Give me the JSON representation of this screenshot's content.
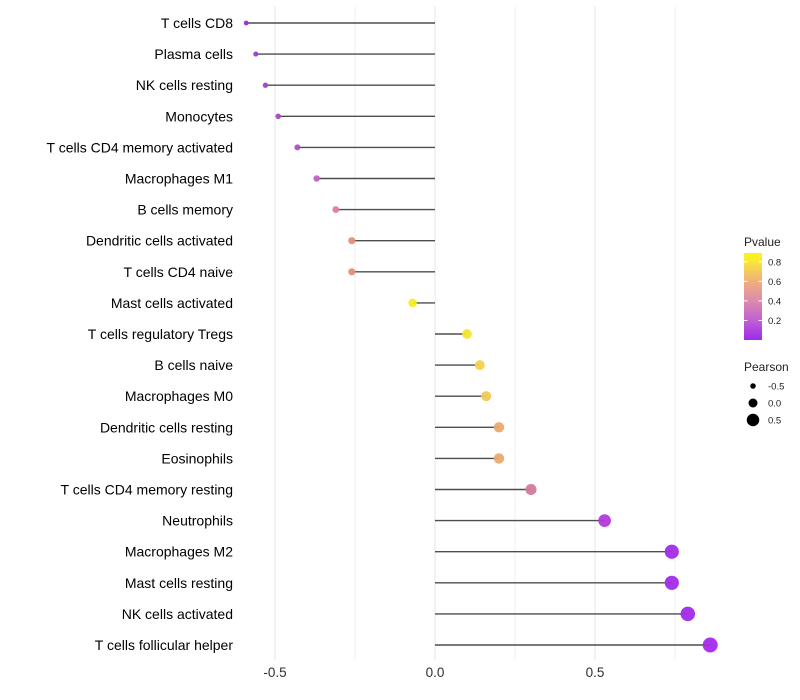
{
  "chart_data": {
    "type": "scatter",
    "variant": "lollipop",
    "title": "",
    "xlabel": "",
    "ylabel": "",
    "xlim": [
      -0.66,
      0.92
    ],
    "baseline_x": 0.0,
    "x_major_ticks": [
      -0.5,
      0.0,
      0.5
    ],
    "x_major_tick_labels": [
      "-0.5",
      "0.0",
      "0.5"
    ],
    "x_minor_ticks": [
      -0.25,
      0.25,
      0.75
    ],
    "grid": "vertical-only",
    "legend_position": "right",
    "categories": [
      "T cells CD8",
      "Plasma cells",
      "NK cells resting",
      "Monocytes",
      "T cells CD4 memory activated",
      "Macrophages M1",
      "B cells memory",
      "Dendritic cells activated",
      "T cells CD4 naive",
      "Mast cells activated",
      "T cells regulatory  Tregs",
      "B cells naive",
      "Macrophages M0",
      "Dendritic cells resting",
      "Eosinophils",
      "T cells CD4 memory resting",
      "Neutrophils",
      "Macrophages M2",
      "Mast cells resting",
      "NK cells activated",
      "T cells follicular helper"
    ],
    "series": [
      {
        "name": "Pearson correlation",
        "values": [
          -0.59,
          -0.56,
          -0.53,
          -0.49,
          -0.43,
          -0.37,
          -0.31,
          -0.26,
          -0.26,
          -0.07,
          0.1,
          0.14,
          0.16,
          0.2,
          0.2,
          0.3,
          0.53,
          0.74,
          0.74,
          0.79,
          0.86
        ],
        "pvalues_est": [
          0.02,
          0.03,
          0.05,
          0.07,
          0.1,
          0.18,
          0.3,
          0.45,
          0.45,
          0.88,
          0.82,
          0.68,
          0.64,
          0.55,
          0.55,
          0.35,
          0.12,
          0.02,
          0.02,
          0.015,
          0.01
        ],
        "dot_colors": [
          "#9333D8",
          "#9C39D3",
          "#A040D0",
          "#A747CC",
          "#AC50C9",
          "#C263C2",
          "#DC80A4",
          "#E68E7C",
          "#E68E7C",
          "#F8EC1E",
          "#F6E52E",
          "#F2D24B",
          "#F0CA58",
          "#EAAA6E",
          "#EAAA6E",
          "#D2799E",
          "#B23ADA",
          "#A32CE8",
          "#A32CE8",
          "#A22BE9",
          "#A42BEB"
        ]
      }
    ],
    "legends": {
      "color": {
        "title": "Pvalue",
        "tick_labels": [
          "0.8",
          "0.6",
          "0.4",
          "0.2"
        ],
        "tick_values": [
          0.8,
          0.6,
          0.4,
          0.2
        ],
        "range": [
          0.0,
          0.89
        ],
        "gradient_stops": [
          {
            "p": 0.89,
            "color": "#FDF515"
          },
          {
            "p": 0.8,
            "color": "#F9E63A"
          },
          {
            "p": 0.6,
            "color": "#EFAF7D"
          },
          {
            "p": 0.4,
            "color": "#DC8BAC"
          },
          {
            "p": 0.2,
            "color": "#BF5FD3"
          },
          {
            "p": 0.05,
            "color": "#A637E6"
          },
          {
            "p": 0.0,
            "color": "#9A2CEE"
          }
        ]
      },
      "size": {
        "title": "Pearson",
        "entries": [
          {
            "label": "-0.5",
            "value": -0.5
          },
          {
            "label": "0.0",
            "value": 0.0
          },
          {
            "label": "0.5",
            "value": 0.5
          }
        ],
        "dot_color": "#000000"
      }
    },
    "style": {
      "background": "#ffffff",
      "stem_color": "#4d4d4d",
      "grid_major_color": "#e5e5e5",
      "grid_minor_color": "#f2f2f2",
      "category_text_color": "#000000",
      "axis_text_color": "#303030",
      "legend_text_color": "#222222"
    }
  }
}
